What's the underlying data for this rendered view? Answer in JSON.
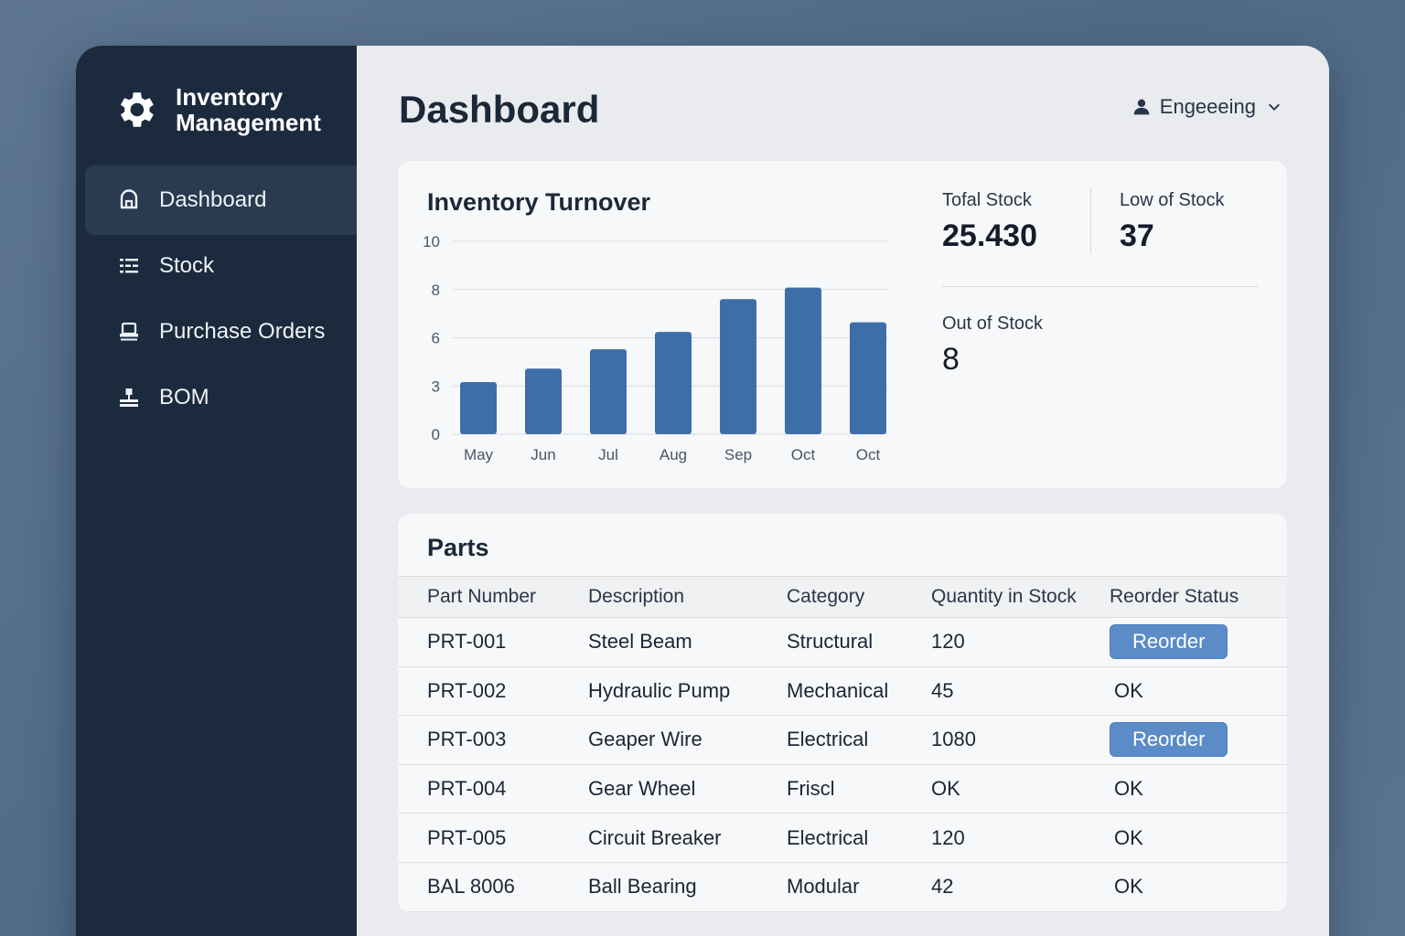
{
  "app": {
    "title_line1": "Inventory",
    "title_line2": "Management",
    "icon": "gear-icon"
  },
  "sidebar": {
    "items": [
      {
        "label": "Dashboard",
        "icon": "home-icon",
        "active": true
      },
      {
        "label": "Stock",
        "icon": "list-icon",
        "active": false
      },
      {
        "label": "Purchase Orders",
        "icon": "printer-icon",
        "active": false
      },
      {
        "label": "BOM",
        "icon": "hierarchy-icon",
        "active": false
      }
    ]
  },
  "header": {
    "title": "Dashboard",
    "user": "Engeeeing"
  },
  "turnover": {
    "title": "Inventory Turnover"
  },
  "stats": {
    "total_stock_label": "Tofal Stock",
    "total_stock_value": "25.430",
    "low_stock_label": "Low of Stock",
    "low_stock_value": "37",
    "out_of_stock_label": "Out of Stock",
    "out_of_stock_value": "8"
  },
  "chart_data": {
    "type": "bar",
    "title": "Inventory Turnover",
    "categories": [
      "May",
      "Jun",
      "Jul",
      "Aug",
      "Sep",
      "Oct",
      "Oct"
    ],
    "values": [
      2.7,
      3.4,
      4.4,
      5.3,
      7.0,
      7.6,
      5.8
    ],
    "y_tick_labels": [
      "0",
      "3",
      "6",
      "8",
      "10"
    ],
    "ylim": [
      0,
      10
    ],
    "grid": true,
    "bar_color": "#3d6ea8"
  },
  "parts": {
    "title": "Parts",
    "columns": [
      "Part Number",
      "Description",
      "Category",
      "Quantity in Stock",
      "Reorder Status"
    ],
    "rows": [
      {
        "part": "PRT-001",
        "desc": "Steel Beam",
        "cat": "Structural",
        "qty": "120",
        "status": "Reorder",
        "is_button": true
      },
      {
        "part": "PRT-002",
        "desc": "Hydraulic Pump",
        "cat": "Mechanical",
        "qty": "45",
        "status": "OK",
        "is_button": false
      },
      {
        "part": "PRT-003",
        "desc": "Geaper Wire",
        "cat": "Electrical",
        "qty": "1080",
        "status": "Reorder",
        "is_button": true
      },
      {
        "part": "PRT-004",
        "desc": "Gear Wheel",
        "cat": "Friscl",
        "qty": "OK",
        "status": "OK",
        "is_button": false
      },
      {
        "part": "PRT-005",
        "desc": "Circuit Breaker",
        "cat": "Electrical",
        "qty": "120",
        "status": "OK",
        "is_button": false
      },
      {
        "part": "BAL 8006",
        "desc": "Ball Bearing",
        "cat": "Modular",
        "qty": "42",
        "status": "OK",
        "is_button": false
      }
    ]
  },
  "colors": {
    "sidebar_bg": "#1c2a3d",
    "sidebar_active": "#2a3a50",
    "accent": "#5b8cc8",
    "bar": "#3d6ea8"
  }
}
